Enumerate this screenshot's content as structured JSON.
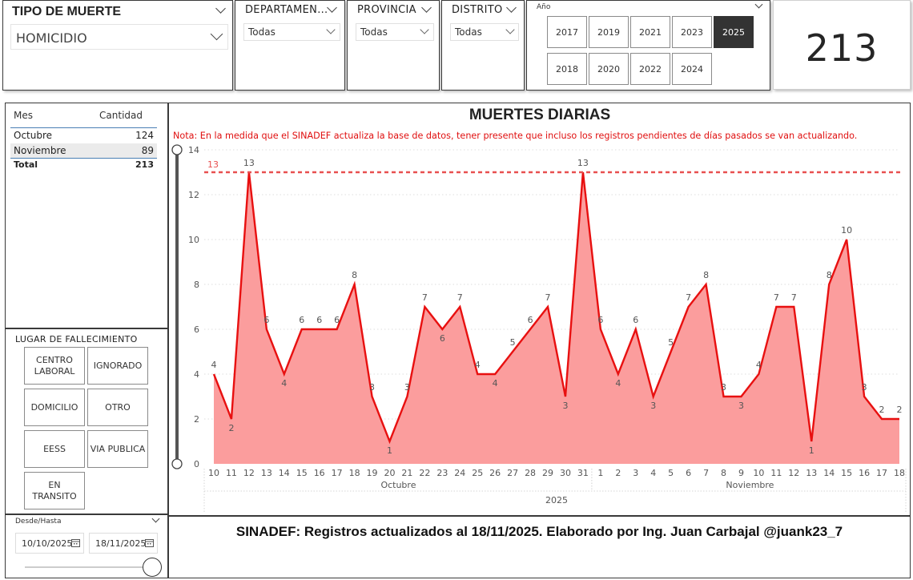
{
  "tipo_muerte": {
    "title": "TIPO DE MUERTE",
    "selected": "HOMICIDIO"
  },
  "departamento": {
    "title": "DEPARTAMEN...",
    "selected": "Todas"
  },
  "provincia": {
    "title": "PROVINCIA",
    "selected": "Todas"
  },
  "distrito": {
    "title": "DISTRITO",
    "selected": "Todas"
  },
  "anio": {
    "title": "Año",
    "options": [
      "2017",
      "2019",
      "2021",
      "2023",
      "2025",
      "2018",
      "2020",
      "2022",
      "2024"
    ],
    "selected": "2025"
  },
  "kpi": {
    "value": "213"
  },
  "mes_table": {
    "headers": [
      "Mes",
      "Cantidad"
    ],
    "rows": [
      {
        "mes": "Octubre",
        "cantidad": "124"
      },
      {
        "mes": "Noviembre",
        "cantidad": "89"
      }
    ],
    "total_label": "Total",
    "total_value": "213"
  },
  "lugar": {
    "title": "LUGAR DE FALLECIMIENTO",
    "options": [
      "CENTRO\nLABORAL",
      "IGNORADO",
      "DOMICILIO",
      "OTRO",
      "EESS",
      "VIA PUBLICA",
      "EN\nTRANSITO"
    ]
  },
  "fecha": {
    "title": "Desde/Hasta",
    "desde": "10/10/2025",
    "hasta": "18/11/2025"
  },
  "footer": {
    "text": "SINADEF: Registros actualizados al 18/11/2025. Elaborado por Ing. Juan Carbajal @juank23_7"
  },
  "colors": {
    "line": "#e81010",
    "area": "#fb9d9d",
    "ref": "#e85050",
    "note": "#e01010"
  },
  "chart_data": {
    "type": "area",
    "title": "MUERTES DIARIAS",
    "note": "Nota: En la medida que el SINADEF actualiza la base de datos, tener presente que incluso los registros pendientes de días pasados se van actualizando.",
    "x": [
      "10",
      "11",
      "12",
      "13",
      "14",
      "15",
      "16",
      "17",
      "18",
      "19",
      "20",
      "21",
      "22",
      "23",
      "24",
      "25",
      "26",
      "27",
      "28",
      "29",
      "30",
      "31",
      "1",
      "2",
      "3",
      "4",
      "5",
      "6",
      "7",
      "8",
      "9",
      "10",
      "11",
      "12",
      "13",
      "14",
      "15",
      "16",
      "17",
      "18"
    ],
    "values": [
      4,
      2,
      13,
      6,
      4,
      6,
      6,
      6,
      8,
      3,
      1,
      3,
      7,
      6,
      7,
      4,
      4,
      5,
      6,
      7,
      3,
      13,
      6,
      4,
      6,
      3,
      5,
      7,
      8,
      3,
      3,
      4,
      7,
      7,
      1,
      8,
      10,
      3,
      2,
      2
    ],
    "months": [
      {
        "label": "Octubre",
        "start": 0,
        "end": 21
      },
      {
        "label": "Noviembre",
        "start": 22,
        "end": 39
      }
    ],
    "year_label": "2025",
    "yticks": [
      "0",
      "2",
      "4",
      "6",
      "8",
      "10",
      "12",
      "14"
    ],
    "ylim": [
      0,
      14
    ],
    "reference_line": {
      "value": 13,
      "label": "13"
    },
    "grid": true
  }
}
